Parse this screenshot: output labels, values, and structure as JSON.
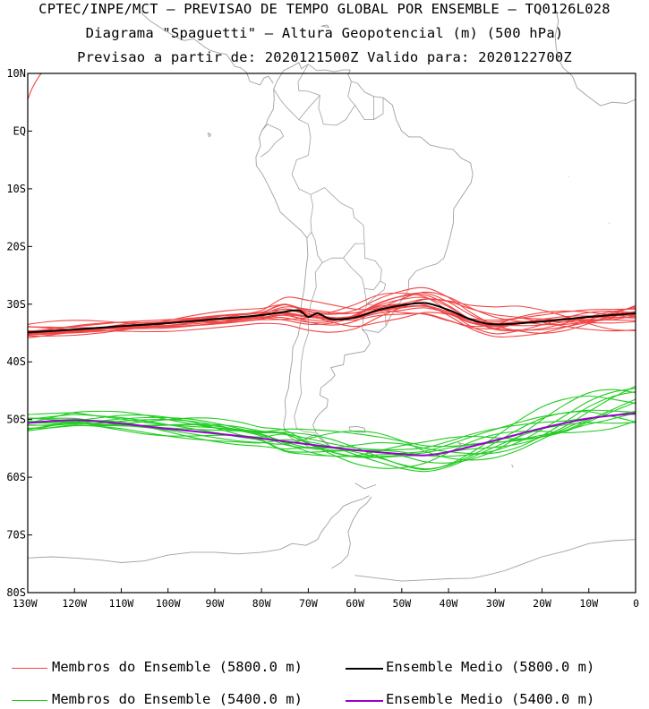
{
  "header": {
    "line1": "CPTEC/INPE/MCT — PREVISAO DE TEMPO GLOBAL POR ENSEMBLE — TQ0126L028",
    "line2": "Diagrama \"Spaguetti\" — Altura Geopotencial (m) (500 hPa)",
    "line3": "Previsao a partir de: 2020121500Z  Valido para: 2020122700Z"
  },
  "axes": {
    "lat_labels": [
      "10N",
      "EQ",
      "10S",
      "20S",
      "30S",
      "40S",
      "50S",
      "60S",
      "70S",
      "80S"
    ],
    "lat_values": [
      10,
      0,
      -10,
      -20,
      -30,
      -40,
      -50,
      -60,
      -70,
      -80
    ],
    "lon_labels": [
      "130W",
      "120W",
      "110W",
      "100W",
      "90W",
      "80W",
      "70W",
      "60W",
      "50W",
      "40W",
      "30W",
      "20W",
      "10W",
      "0"
    ],
    "lon_values": [
      -130,
      -120,
      -110,
      -100,
      -90,
      -80,
      -70,
      -60,
      -50,
      -40,
      -30,
      -20,
      -10,
      0
    ]
  },
  "legend": {
    "red_members": "Membros do Ensemble (5800.0 m)",
    "black_mean": "Ensemble Medio (5800.0 m)",
    "green_members": "Membros do Ensemble (5400.0 m)",
    "purple_mean": "Ensemble Medio (5400.0 m)"
  },
  "colors": {
    "red": "#f04545",
    "green": "#22cc22",
    "black": "#000000",
    "purple": "#9900cc",
    "coast": "#a0a0a0"
  },
  "chart_data": {
    "type": "line",
    "lon_range": [
      -130,
      0
    ],
    "lat_range": [
      -80,
      10
    ],
    "series": [
      {
        "name": "Ensemble Medio (5800.0 m)",
        "lon": [
          -130,
          -120,
          -110,
          -100,
          -90,
          -80,
          -75,
          -72,
          -70,
          -68,
          -65,
          -60,
          -55,
          -50,
          -45,
          -40,
          -35,
          -30,
          -20,
          -10,
          0
        ],
        "lat": [
          -34.9,
          -34.4,
          -33.8,
          -33.3,
          -32.6,
          -31.9,
          -31.3,
          -31.1,
          -32.2,
          -31.6,
          -32.6,
          -32.3,
          -31.0,
          -30.2,
          -29.8,
          -31.0,
          -32.7,
          -33.5,
          -33.0,
          -32.2,
          -31.6
        ]
      },
      {
        "name": "Ensemble Medio (5400.0 m)",
        "lon": [
          -130,
          -120,
          -110,
          -100,
          -90,
          -80,
          -70,
          -60,
          -50,
          -45,
          -40,
          -30,
          -20,
          -10,
          0
        ],
        "lat": [
          -50.6,
          -50.1,
          -50.7,
          -51.6,
          -52.4,
          -53.3,
          -54.3,
          -55.3,
          -56.0,
          -56.2,
          -55.6,
          -53.6,
          -51.5,
          -49.8,
          -48.9
        ]
      }
    ]
  }
}
